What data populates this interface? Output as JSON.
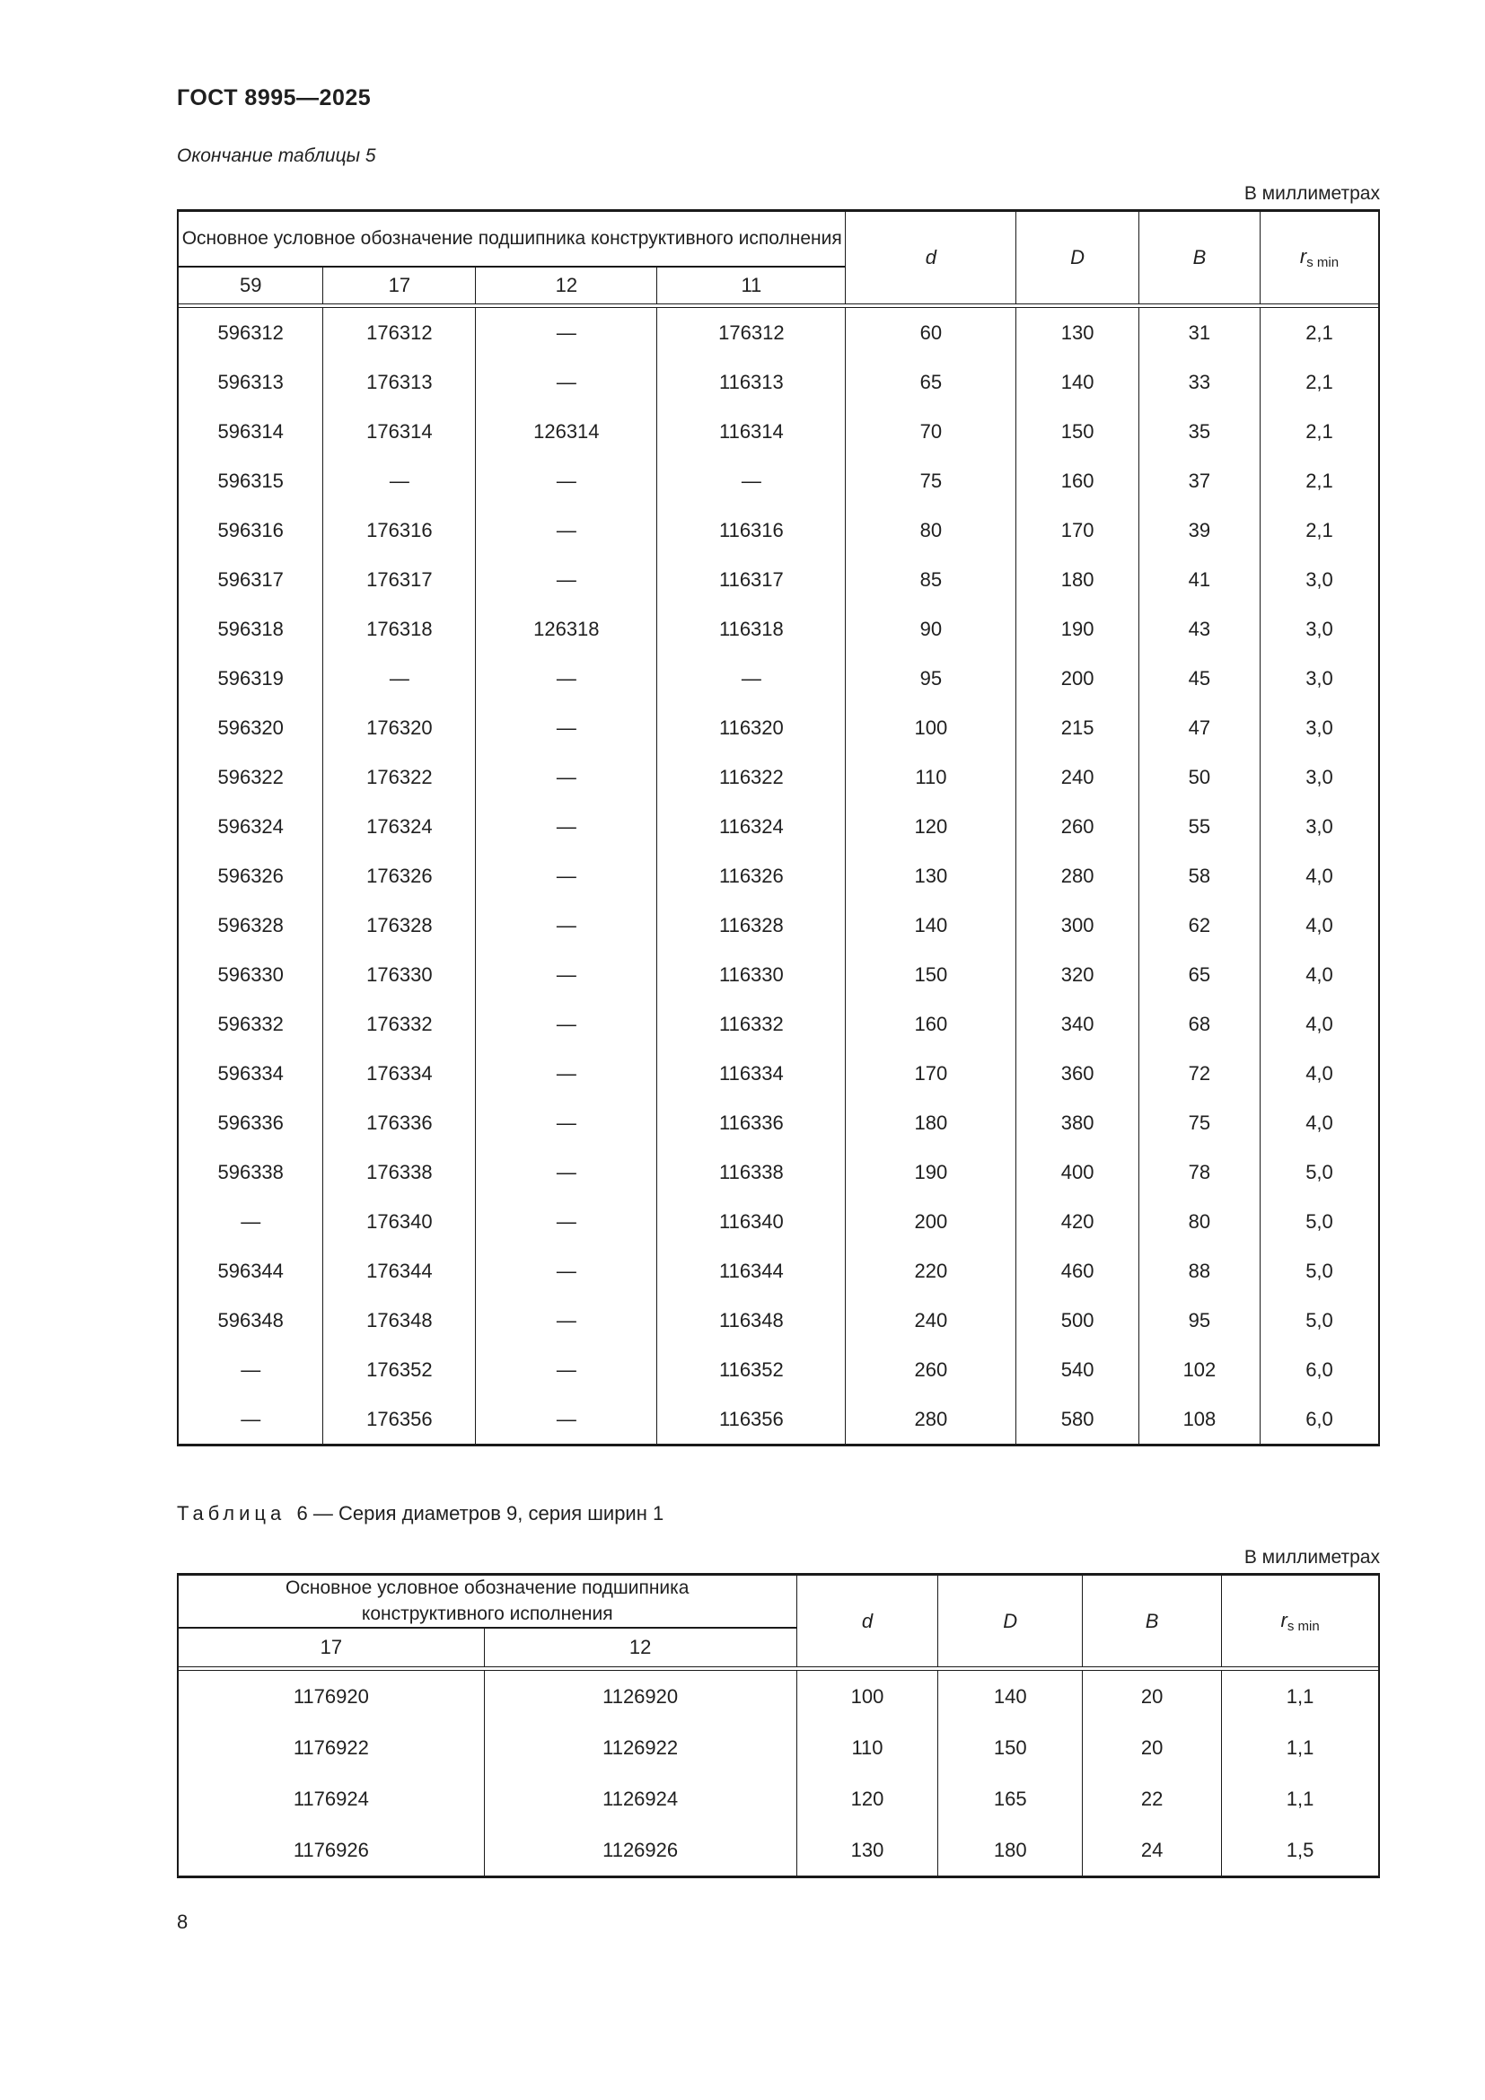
{
  "page": {
    "standard": "ГОСТ 8995—2025",
    "page_number": "8"
  },
  "table5": {
    "continuation_label": "Окончание таблицы 5",
    "units_label": "В миллиметрах",
    "header": {
      "designation_title": "Основное условное обозначение подшипника конструктивного исполнения",
      "designation_columns": [
        "59",
        "17",
        "12",
        "11"
      ],
      "dim_columns": [
        "d",
        "D",
        "B"
      ],
      "r_base": "r",
      "r_sub": "s min"
    },
    "rows": [
      [
        "596312",
        "176312",
        "—",
        "176312",
        "60",
        "130",
        "31",
        "2,1"
      ],
      [
        "596313",
        "176313",
        "—",
        "116313",
        "65",
        "140",
        "33",
        "2,1"
      ],
      [
        "596314",
        "176314",
        "126314",
        "116314",
        "70",
        "150",
        "35",
        "2,1"
      ],
      [
        "596315",
        "—",
        "—",
        "—",
        "75",
        "160",
        "37",
        "2,1"
      ],
      [
        "596316",
        "176316",
        "—",
        "116316",
        "80",
        "170",
        "39",
        "2,1"
      ],
      [
        "596317",
        "176317",
        "—",
        "116317",
        "85",
        "180",
        "41",
        "3,0"
      ],
      [
        "596318",
        "176318",
        "126318",
        "116318",
        "90",
        "190",
        "43",
        "3,0"
      ],
      [
        "596319",
        "—",
        "—",
        "—",
        "95",
        "200",
        "45",
        "3,0"
      ],
      [
        "596320",
        "176320",
        "—",
        "116320",
        "100",
        "215",
        "47",
        "3,0"
      ],
      [
        "596322",
        "176322",
        "—",
        "116322",
        "110",
        "240",
        "50",
        "3,0"
      ],
      [
        "596324",
        "176324",
        "—",
        "116324",
        "120",
        "260",
        "55",
        "3,0"
      ],
      [
        "596326",
        "176326",
        "—",
        "116326",
        "130",
        "280",
        "58",
        "4,0"
      ],
      [
        "596328",
        "176328",
        "—",
        "116328",
        "140",
        "300",
        "62",
        "4,0"
      ],
      [
        "596330",
        "176330",
        "—",
        "116330",
        "150",
        "320",
        "65",
        "4,0"
      ],
      [
        "596332",
        "176332",
        "—",
        "116332",
        "160",
        "340",
        "68",
        "4,0"
      ],
      [
        "596334",
        "176334",
        "—",
        "116334",
        "170",
        "360",
        "72",
        "4,0"
      ],
      [
        "596336",
        "176336",
        "—",
        "116336",
        "180",
        "380",
        "75",
        "4,0"
      ],
      [
        "596338",
        "176338",
        "—",
        "116338",
        "190",
        "400",
        "78",
        "5,0"
      ],
      [
        "—",
        "176340",
        "—",
        "116340",
        "200",
        "420",
        "80",
        "5,0"
      ],
      [
        "596344",
        "176344",
        "—",
        "116344",
        "220",
        "460",
        "88",
        "5,0"
      ],
      [
        "596348",
        "176348",
        "—",
        "116348",
        "240",
        "500",
        "95",
        "5,0"
      ],
      [
        "—",
        "176352",
        "—",
        "116352",
        "260",
        "540",
        "102",
        "6,0"
      ],
      [
        "—",
        "176356",
        "—",
        "116356",
        "280",
        "580",
        "108",
        "6,0"
      ]
    ]
  },
  "table6": {
    "caption_label": "Таблица",
    "caption_number": "6",
    "caption_separator": "—",
    "caption_title": "Серия диаметров 9, серия ширин 1",
    "units_label": "В миллиметрах",
    "header": {
      "designation_title": "Основное условное обозначение подшипника конструктивного исполнения",
      "designation_columns": [
        "17",
        "12"
      ],
      "dim_columns": [
        "d",
        "D",
        "B"
      ],
      "r_base": "r",
      "r_sub": "s min"
    },
    "rows": [
      [
        "1176920",
        "1126920",
        "100",
        "140",
        "20",
        "1,1"
      ],
      [
        "1176922",
        "1126922",
        "110",
        "150",
        "20",
        "1,1"
      ],
      [
        "1176924",
        "1126924",
        "120",
        "165",
        "22",
        "1,1"
      ],
      [
        "1176926",
        "1126926",
        "130",
        "180",
        "24",
        "1,5"
      ]
    ]
  }
}
